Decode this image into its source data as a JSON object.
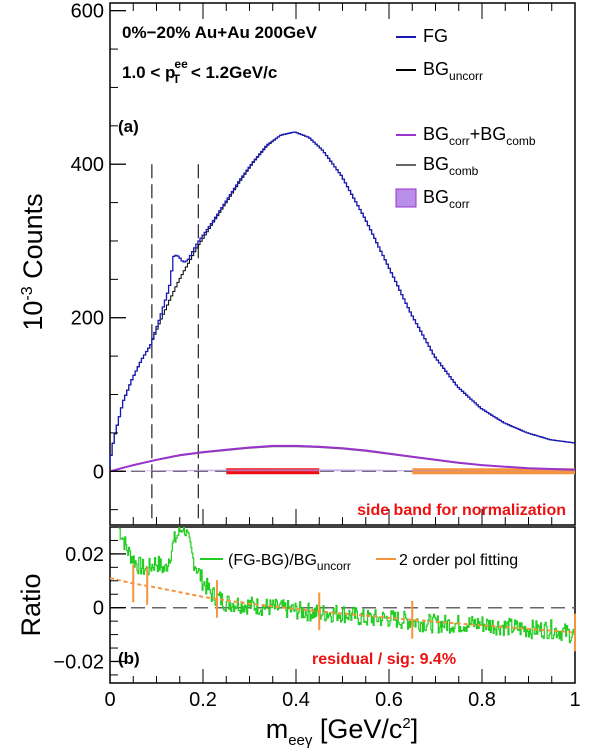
{
  "chart_data": [
    {
      "panel": "(a)",
      "type": "line",
      "xlabel": "m_{eeγ} [GeV/c^{2}]",
      "ylabel": "10^{-3} Counts",
      "xlim": [
        0,
        1
      ],
      "ylim": [
        -70,
        610
      ],
      "x_ticks": [
        "0",
        "0.2",
        "0.4",
        "0.6",
        "0.8",
        "1"
      ],
      "y_ticks": [
        "0",
        "200",
        "400",
        "600"
      ],
      "annotations": {
        "panel_label": "(a)",
        "info_line1": "0%−20% Au+Au 200GeV",
        "info_line2_parts": [
          "1.0 < p",
          "ee",
          "T",
          " < 1.2GeV/c"
        ],
        "side_band_label": "side band for normalization"
      },
      "vertical_dashed_lines_x": [
        0.09,
        0.19
      ],
      "side_bands": [
        {
          "x_range": [
            0.25,
            0.45
          ],
          "color": "#ee1111"
        },
        {
          "x_range": [
            0.65,
            1.0
          ],
          "color": "#f5943d"
        }
      ],
      "legend": [
        {
          "parts": [
            "FG"
          ],
          "color": "#1a1ab3",
          "kind": "line"
        },
        {
          "parts": [
            "BG",
            "uncorr"
          ],
          "color": "#000000",
          "kind": "line"
        },
        {
          "parts": [
            "BG",
            "corr",
            "+BG",
            "comb"
          ],
          "color": "#9933cc",
          "kind": "line"
        },
        {
          "parts": [
            "BG",
            "comb"
          ],
          "color": "#666666",
          "kind": "line"
        },
        {
          "parts": [
            "BG",
            "corr"
          ],
          "color": "#b98ee8",
          "kind": "box"
        }
      ],
      "series": [
        {
          "name": "FG",
          "color": "#1a1ab3",
          "x": [
            0.0,
            0.01,
            0.03,
            0.05,
            0.07,
            0.09,
            0.11,
            0.13,
            0.14,
            0.15,
            0.16,
            0.17,
            0.19,
            0.22,
            0.25,
            0.28,
            0.31,
            0.34,
            0.37,
            0.4,
            0.43,
            0.46,
            0.5,
            0.55,
            0.6,
            0.65,
            0.7,
            0.75,
            0.8,
            0.85,
            0.9,
            0.95,
            1.0
          ],
          "y": [
            5,
            40,
            90,
            120,
            145,
            165,
            200,
            240,
            282,
            280,
            272,
            275,
            297,
            322,
            350,
            378,
            403,
            425,
            438,
            442,
            435,
            418,
            385,
            330,
            268,
            205,
            150,
            110,
            82,
            63,
            50,
            41,
            37
          ]
        },
        {
          "name": "BG_uncorr",
          "color": "#000000",
          "x": [
            0.0,
            0.01,
            0.03,
            0.05,
            0.07,
            0.09,
            0.11,
            0.13,
            0.15,
            0.17,
            0.19,
            0.22,
            0.25,
            0.28,
            0.31,
            0.34,
            0.37,
            0.4,
            0.43,
            0.46,
            0.5,
            0.55,
            0.6,
            0.65,
            0.7,
            0.75,
            0.8,
            0.85,
            0.9,
            0.95,
            1.0
          ],
          "y": [
            5,
            40,
            90,
            120,
            145,
            165,
            195,
            222,
            248,
            270,
            292,
            320,
            348,
            376,
            402,
            424,
            438,
            442,
            435,
            418,
            385,
            330,
            268,
            205,
            150,
            110,
            82,
            63,
            50,
            41,
            37
          ]
        },
        {
          "name": "BG_corr+BG_comb",
          "color": "#9933cc",
          "x": [
            0.0,
            0.05,
            0.1,
            0.15,
            0.2,
            0.25,
            0.3,
            0.35,
            0.4,
            0.45,
            0.5,
            0.55,
            0.6,
            0.65,
            0.7,
            0.75,
            0.8,
            0.85,
            0.9,
            0.95,
            1.0
          ],
          "y": [
            0,
            8,
            15,
            21,
            25,
            28,
            31,
            33,
            33,
            32,
            30,
            27,
            23,
            19,
            15,
            11,
            8,
            6,
            4,
            3,
            2
          ]
        }
      ]
    },
    {
      "panel": "(b)",
      "type": "line",
      "xlabel": "m_{eeγ} [GeV/c^{2}]",
      "ylabel": "Ratio",
      "xlim": [
        0,
        1
      ],
      "ylim": [
        -0.028,
        0.03
      ],
      "x_ticks": [
        "0",
        "0.2",
        "0.4",
        "0.6",
        "0.8",
        "1"
      ],
      "y_ticks": [
        "0.02",
        "0",
        "−0.02"
      ],
      "annotations": {
        "panel_label": "(b)",
        "residual_label": "residual / sig: 9.4%"
      },
      "legend": [
        {
          "parts": [
            "(FG-BG)/BG",
            "uncorr"
          ],
          "color": "#22cc22",
          "kind": "line"
        },
        {
          "parts": [
            "2 order pol fitting"
          ],
          "color": "#f5943d",
          "kind": "line"
        }
      ],
      "series": [
        {
          "name": "(FG-BG)/BG_uncorr",
          "color": "#22cc22",
          "x": [
            0.02,
            0.04,
            0.06,
            0.08,
            0.1,
            0.12,
            0.14,
            0.16,
            0.18,
            0.2,
            0.22,
            0.25,
            0.3,
            0.35,
            0.4,
            0.45,
            0.5,
            0.55,
            0.6,
            0.65,
            0.7,
            0.75,
            0.8,
            0.85,
            0.9,
            0.95,
            1.0
          ],
          "y": [
            0.03,
            0.021,
            0.016,
            0.014,
            0.017,
            0.014,
            0.025,
            0.031,
            0.018,
            0.01,
            0.005,
            0.002,
            0.001,
            0.0,
            -0.001,
            -0.002,
            -0.002,
            -0.004,
            -0.004,
            -0.005,
            -0.006,
            -0.006,
            -0.006,
            -0.007,
            -0.008,
            -0.008,
            -0.01
          ]
        },
        {
          "name": "2 order pol fitting",
          "color": "#f5943d",
          "x": [
            0.0,
            0.05,
            0.1,
            0.2,
            0.3,
            0.4,
            0.5,
            0.6,
            0.7,
            0.8,
            0.9,
            1.0
          ],
          "y": [
            0.011,
            0.009,
            0.0075,
            0.004,
            0.0015,
            -0.0005,
            -0.0022,
            -0.0038,
            -0.0052,
            -0.0066,
            -0.0079,
            -0.0092
          ]
        }
      ]
    }
  ]
}
